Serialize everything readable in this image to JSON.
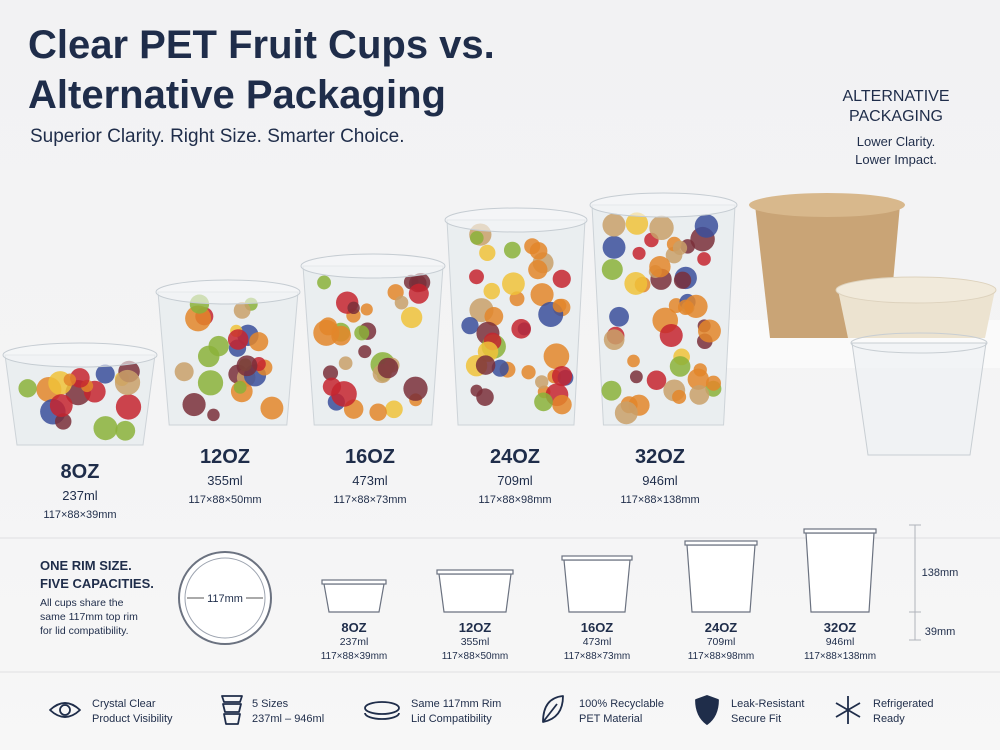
{
  "header": {
    "title": [
      "Clear PET Fruit Cups vs.",
      "Alternative Packaging"
    ],
    "subtitle": "Superior Clarity. Right Size. Smarter Choice."
  },
  "alternative": {
    "heading": [
      "ALTERNATIVE",
      "PACKAGING"
    ],
    "note": [
      "Lower Clarity.",
      "Lower Impact."
    ]
  },
  "cups": [
    {
      "size": "8OZ",
      "volume": "237ml",
      "dims": "117×88×39mm"
    },
    {
      "size": "12OZ",
      "volume": "355ml",
      "dims": "117×88×50mm"
    },
    {
      "size": "16OZ",
      "volume": "473ml",
      "dims": "117×88×73mm"
    },
    {
      "size": "24OZ",
      "volume": "709ml",
      "dims": "117×88×98mm"
    },
    {
      "size": "32OZ",
      "volume": "946ml",
      "dims": "117×88×138mm"
    }
  ],
  "rim": {
    "heading": [
      "ONE RIM SIZE.",
      "FIVE CAPACITIES."
    ],
    "description": [
      "All cups share the",
      "same 117mm top rim",
      "for lid compatibility."
    ],
    "rim_label": "117mm",
    "diagram": [
      {
        "size": "8OZ",
        "volume": "237ml",
        "dims": "117×88×39mm"
      },
      {
        "size": "12OZ",
        "volume": "355ml",
        "dims": "117×88×50mm"
      },
      {
        "size": "16OZ",
        "volume": "473ml",
        "dims": "117×88×73mm"
      },
      {
        "size": "24OZ",
        "volume": "709ml",
        "dims": "117×88×98mm"
      },
      {
        "size": "32OZ",
        "volume": "946ml",
        "dims": "117×88×138mm"
      }
    ],
    "height_labels": [
      "138mm",
      "39mm"
    ]
  },
  "features": [
    {
      "lines": [
        "Crystal Clear",
        "Product Visibility"
      ]
    },
    {
      "lines": [
        "5 Sizes",
        "237ml – 946ml"
      ]
    },
    {
      "lines": [
        "Same 117mm Rim",
        "Lid Compatibility"
      ]
    },
    {
      "lines": [
        "100% Recyclable",
        "PET Material"
      ]
    },
    {
      "lines": [
        "Leak-Resistant",
        "Secure Fit"
      ]
    },
    {
      "lines": [
        "Refrigerated",
        "Ready"
      ]
    }
  ]
}
